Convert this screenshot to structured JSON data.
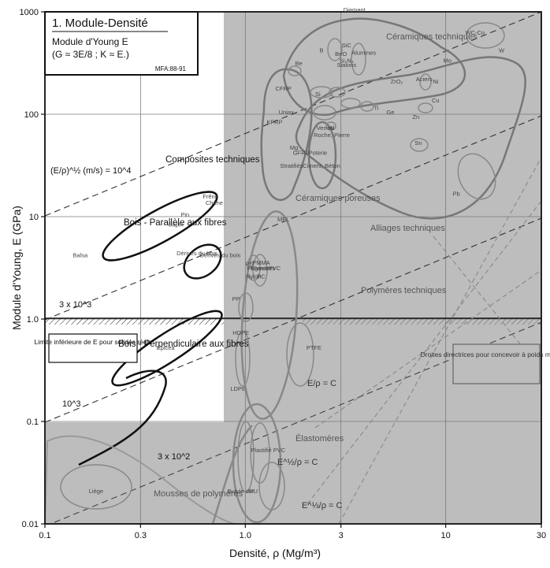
{
  "chart_data": {
    "type": "scatter",
    "title": "1. Module-Densité",
    "subtitle": "Module d'Young  E",
    "subtitle2": "(G ≈ 3E/8 ; K ≈ E.)",
    "source_note": "MFA:88-91",
    "xlabel": "Densité, ρ  (Mg/m³)",
    "ylabel": "Module d'Young, E (GPa)",
    "x_scale": "log",
    "y_scale": "log",
    "xlim": [
      0.1,
      30
    ],
    "ylim": [
      0.01,
      1000
    ],
    "x_ticks": [
      0.1,
      0.3,
      1.0,
      3,
      10,
      30
    ],
    "x_tick_labels": [
      "0.1",
      "0.3",
      "1.0",
      "3",
      "10",
      "30"
    ],
    "y_ticks": [
      0.01,
      0.1,
      1.0,
      10,
      100,
      1000
    ],
    "y_tick_labels": [
      "0.01",
      "0.1",
      "1.0",
      "10",
      "100",
      "1000"
    ],
    "grid": true,
    "families": [
      {
        "label": "Céramiques techniques",
        "x": 6.5,
        "y": 300,
        "w": 1.3,
        "h": 0.8
      },
      {
        "label": "Alliages techniques",
        "x": 5.5,
        "y": 60,
        "w": 2.2,
        "h": 1.4
      },
      {
        "label": "Composites techniques",
        "x": 1.6,
        "y": 60,
        "w": 0.5,
        "h": 1.2
      },
      {
        "label": "Céramiques poreuses",
        "x": 2.6,
        "y": 30,
        "w": 0.4,
        "h": 0.8
      },
      {
        "label": "Bois - Parallèle aux fibres",
        "x": 0.45,
        "y": 9,
        "w": 0.8,
        "h": 0.28
      },
      {
        "label": "Bois - Perpendiculaire aux fibres",
        "x": 0.45,
        "y": 0.7,
        "w": 0.9,
        "h": 0.25
      },
      {
        "label": "Dérivés du bois",
        "x": 0.75,
        "y": 4,
        "w": 0.35,
        "h": 0.3
      },
      {
        "label": "Polymères techniques",
        "x": 1.3,
        "y": 2.5,
        "w": 0.25,
        "h": 1.2
      },
      {
        "label": "Élastomères",
        "x": 1.1,
        "y": 0.01,
        "w": 0.3,
        "h": 1.5
      },
      {
        "label": "Mousses de polymères",
        "x": 0.1,
        "y": 0.01,
        "w": 0.8,
        "h": 1.0
      }
    ],
    "guide_lines": [
      {
        "label": "(E/ρ)^½ (m/s) = 10^4",
        "slope": 1,
        "anchor": {
          "x": 0.1,
          "y": 10
        }
      },
      {
        "label": "3 x 10^3",
        "slope": 1,
        "anchor": {
          "x": 0.1,
          "y": 0.9
        }
      },
      {
        "label": "10^3",
        "slope": 1,
        "anchor": {
          "x": 0.1,
          "y": 0.1
        }
      },
      {
        "label": "3 x 10^2",
        "slope": 1,
        "anchor": {
          "x": 0.3,
          "y": 0.027
        }
      }
    ],
    "criteria_labels": [
      "E/ρ = C",
      "E^½/ρ = C",
      "E^⅓/ρ = C"
    ],
    "annotations": [
      {
        "text": "Limite inférieure de E pour solides réels",
        "y": 0.9
      },
      {
        "text": "Droites directrices pour concevoir à poids minimum"
      }
    ],
    "materials": [
      {
        "name": "Diamant",
        "x": 3.5,
        "y": 1000
      },
      {
        "name": "SiC",
        "x": 3.2,
        "y": 450
      },
      {
        "name": "B",
        "x": 2.4,
        "y": 400
      },
      {
        "name": "Si₃N₄",
        "x": 3.2,
        "y": 320
      },
      {
        "name": "Alumines",
        "x": 3.9,
        "y": 380
      },
      {
        "name": "WC-Co",
        "x": 14,
        "y": 600
      },
      {
        "name": "Be",
        "x": 1.85,
        "y": 300
      },
      {
        "name": "Sialons",
        "x": 3.2,
        "y": 290
      },
      {
        "name": "ZrO₂",
        "x": 5.7,
        "y": 200
      },
      {
        "name": "Mo",
        "x": 10.2,
        "y": 320
      },
      {
        "name": "W",
        "x": 19,
        "y": 400
      },
      {
        "name": "Si",
        "x": 2.3,
        "y": 150
      },
      {
        "name": "BeO",
        "x": 3.0,
        "y": 370
      },
      {
        "name": "Verres",
        "x": 2.5,
        "y": 70
      },
      {
        "name": "Ni",
        "x": 8.9,
        "y": 200
      },
      {
        "name": "Aciers",
        "x": 7.8,
        "y": 210
      },
      {
        "name": "Ge",
        "x": 5.3,
        "y": 100
      },
      {
        "name": "Cu",
        "x": 8.9,
        "y": 130
      },
      {
        "name": "CFRP",
        "x": 1.55,
        "y": 170
      },
      {
        "name": "Uniax",
        "x": 1.6,
        "y": 100
      },
      {
        "name": "Poterie",
        "x": 2.3,
        "y": 40
      },
      {
        "name": "Ti",
        "x": 4.5,
        "y": 110
      },
      {
        "name": "Zn",
        "x": 7.1,
        "y": 90
      },
      {
        "name": "KFRP",
        "x": 1.4,
        "y": 80
      },
      {
        "name": "GFRP",
        "x": 1.9,
        "y": 40
      },
      {
        "name": "Al",
        "x": 2.7,
        "y": 70
      },
      {
        "name": "Sn",
        "x": 7.3,
        "y": 50
      },
      {
        "name": "Roche, Pierre",
        "x": 2.7,
        "y": 60
      },
      {
        "name": "Ciment, Béton",
        "x": 2.4,
        "y": 30
      },
      {
        "name": "Stratifiés",
        "x": 1.7,
        "y": 30
      },
      {
        "name": "Mg",
        "x": 1.75,
        "y": 45
      },
      {
        "name": "Pb",
        "x": 11.3,
        "y": 16
      },
      {
        "name": "Frêne",
        "x": 0.67,
        "y": 15
      },
      {
        "name": "Chêne",
        "x": 0.7,
        "y": 13
      },
      {
        "name": "Pin",
        "x": 0.5,
        "y": 10
      },
      {
        "name": "Sapin",
        "x": 0.45,
        "y": 8
      },
      {
        "name": "Balsa",
        "x": 0.15,
        "y": 4
      },
      {
        "name": "Dérivés du bois",
        "x": 0.75,
        "y": 4
      },
      {
        "name": "MEL",
        "x": 1.55,
        "y": 9
      },
      {
        "name": "PC",
        "x": 1.2,
        "y": 2.5
      },
      {
        "name": "PS",
        "x": 1.05,
        "y": 3.3
      },
      {
        "name": "Epoxies",
        "x": 1.2,
        "y": 3
      },
      {
        "name": "PMMA",
        "x": 1.2,
        "y": 3.4
      },
      {
        "name": "PVC",
        "x": 1.4,
        "y": 3
      },
      {
        "name": "Nylon",
        "x": 1.1,
        "y": 2.5
      },
      {
        "name": "Polyesters",
        "x": 1.2,
        "y": 3
      },
      {
        "name": "PP",
        "x": 0.9,
        "y": 1.5
      },
      {
        "name": "HDPE",
        "x": 0.95,
        "y": 0.7
      },
      {
        "name": "PTFE",
        "x": 2.2,
        "y": 0.5
      },
      {
        "name": "LDPE",
        "x": 0.92,
        "y": 0.2
      },
      {
        "name": "Plastifié PVC",
        "x": 1.3,
        "y": 0.05
      },
      {
        "name": "Butyle dur",
        "x": 0.95,
        "y": 0.02
      },
      {
        "name": "PU",
        "x": 1.1,
        "y": 0.02
      },
      {
        "name": "Silicone",
        "x": 1.4,
        "y": 0.005
      },
      {
        "name": "Butyle mou",
        "x": 0.95,
        "y": 0.002
      },
      {
        "name": "Liège",
        "x": 0.18,
        "y": 0.02
      },
      {
        "name": "Epicéa",
        "x": 0.4,
        "y": 0.5
      }
    ]
  }
}
